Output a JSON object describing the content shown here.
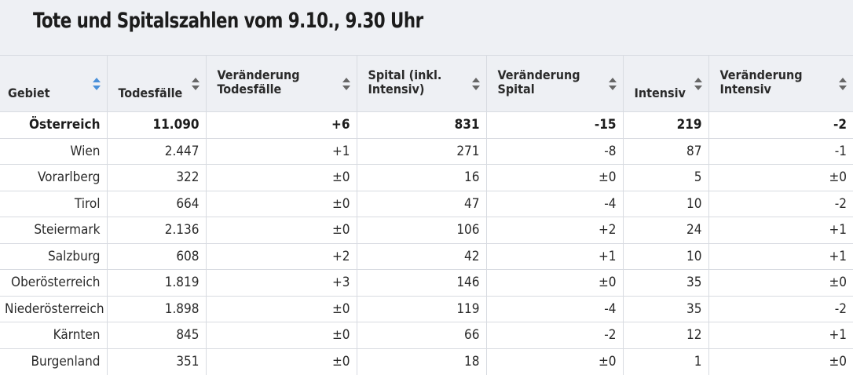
{
  "title": "Tote und Spitalszahlen vom 9.10., 9.30 Uhr",
  "columns": [
    {
      "label": "Gebiet",
      "active_sort": true
    },
    {
      "label": "Todesfälle",
      "active_sort": false
    },
    {
      "label": "Veränderung Todesfälle",
      "active_sort": false
    },
    {
      "label": "Spital (inkl. Intensiv)",
      "active_sort": false
    },
    {
      "label": "Veränderung Spital",
      "active_sort": false
    },
    {
      "label": "Intensiv",
      "active_sort": false
    },
    {
      "label": "Veränderung Intensiv",
      "active_sort": false
    }
  ],
  "rows": [
    [
      "Österreich",
      "11.090",
      "+6",
      "831",
      "-15",
      "219",
      "-2"
    ],
    [
      "Wien",
      "2.447",
      "+1",
      "271",
      "-8",
      "87",
      "-1"
    ],
    [
      "Vorarlberg",
      "322",
      "±0",
      "16",
      "±0",
      "5",
      "±0"
    ],
    [
      "Tirol",
      "664",
      "±0",
      "47",
      "-4",
      "10",
      "-2"
    ],
    [
      "Steiermark",
      "2.136",
      "±0",
      "106",
      "+2",
      "24",
      "+1"
    ],
    [
      "Salzburg",
      "608",
      "+2",
      "42",
      "+1",
      "10",
      "+1"
    ],
    [
      "Oberösterreich",
      "1.819",
      "+3",
      "146",
      "±0",
      "35",
      "±0"
    ],
    [
      "Niederösterreich",
      "1.898",
      "±0",
      "119",
      "-4",
      "35",
      "-2"
    ],
    [
      "Kärnten",
      "845",
      "±0",
      "66",
      "-2",
      "12",
      "+1"
    ],
    [
      "Burgenland",
      "351",
      "±0",
      "18",
      "±0",
      "1",
      "±0"
    ]
  ],
  "bold_rows": [
    0
  ],
  "colors": {
    "header_bg": "#eef0f4",
    "sort_active": "#4a90d9",
    "sort_inactive": "#666666",
    "border": "#d8dbe1"
  }
}
